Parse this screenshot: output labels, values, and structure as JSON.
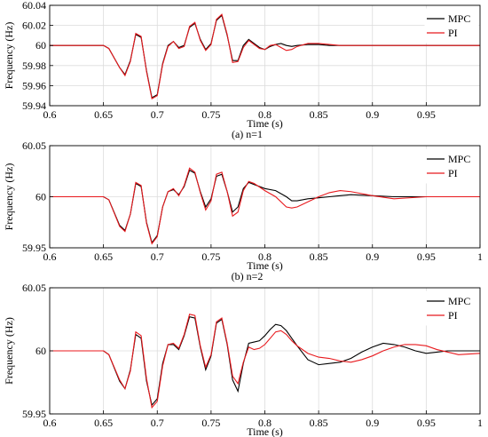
{
  "chart_data": [
    {
      "type": "line",
      "caption": "(a) n=1",
      "xlabel": "Time (s)",
      "ylabel": "Frequency (Hz)",
      "xlim": [
        0.6,
        1.0
      ],
      "ylim": [
        59.94,
        60.04
      ],
      "xticks": [
        0.6,
        0.65,
        0.7,
        0.75,
        0.8,
        0.85,
        0.9,
        0.95
      ],
      "xtick_labels": [
        "0.6",
        "0.65",
        "0.7",
        "0.75",
        "0.8",
        "0.85",
        "0.9",
        "0.95"
      ],
      "yticks": [
        59.94,
        59.96,
        59.98,
        60.0,
        60.02,
        60.04
      ],
      "ytick_labels": [
        "59.94",
        "59.96",
        "59.98",
        "60",
        "60.02",
        "60.04"
      ],
      "grid": true,
      "legend_position": "top-right",
      "series": [
        {
          "name": "MPC",
          "color": "#000000",
          "x": [
            0.6,
            0.65,
            0.655,
            0.665,
            0.67,
            0.675,
            0.68,
            0.685,
            0.69,
            0.695,
            0.7,
            0.705,
            0.71,
            0.715,
            0.72,
            0.725,
            0.73,
            0.735,
            0.74,
            0.745,
            0.75,
            0.755,
            0.76,
            0.765,
            0.77,
            0.775,
            0.78,
            0.785,
            0.79,
            0.795,
            0.8,
            0.805,
            0.81,
            0.815,
            0.82,
            0.825,
            0.83,
            0.84,
            0.85,
            0.86,
            0.87,
            0.88,
            0.9,
            0.95,
            1.0
          ],
          "y": [
            60.0,
            60.0,
            59.997,
            59.978,
            59.971,
            59.985,
            60.011,
            60.008,
            59.975,
            59.948,
            59.951,
            59.982,
            60.0,
            60.004,
            59.998,
            60.0,
            60.018,
            60.022,
            60.006,
            59.996,
            60.002,
            60.025,
            60.03,
            60.01,
            59.985,
            59.985,
            60.0,
            60.006,
            60.002,
            59.998,
            59.996,
            59.999,
            60.001,
            60.002,
            60.0,
            59.999,
            60.0,
            60.001,
            60.001,
            60.0,
            60.0,
            60.0,
            60.0,
            60.0,
            60.0
          ]
        },
        {
          "name": "PI",
          "color": "#e8191d",
          "x": [
            0.6,
            0.65,
            0.655,
            0.665,
            0.67,
            0.675,
            0.68,
            0.685,
            0.69,
            0.695,
            0.7,
            0.705,
            0.71,
            0.715,
            0.72,
            0.725,
            0.73,
            0.735,
            0.74,
            0.745,
            0.75,
            0.755,
            0.76,
            0.765,
            0.77,
            0.775,
            0.78,
            0.785,
            0.79,
            0.795,
            0.8,
            0.805,
            0.81,
            0.815,
            0.82,
            0.825,
            0.83,
            0.84,
            0.85,
            0.86,
            0.87,
            0.88,
            0.9,
            0.95,
            1.0
          ],
          "y": [
            60.0,
            60.0,
            59.997,
            59.978,
            59.97,
            59.984,
            60.012,
            60.009,
            59.974,
            59.947,
            59.95,
            59.981,
            59.999,
            60.004,
            59.997,
            59.999,
            60.019,
            60.023,
            60.005,
            59.995,
            60.001,
            60.026,
            60.031,
            60.011,
            59.983,
            59.984,
            59.998,
            60.005,
            60.001,
            59.997,
            59.996,
            60.0,
            60.001,
            59.998,
            59.995,
            59.996,
            59.999,
            60.002,
            60.002,
            60.001,
            60.0,
            60.0,
            60.0,
            60.0,
            60.0
          ]
        }
      ]
    },
    {
      "type": "line",
      "caption": "(b) n=2",
      "xlabel": "Time (s)",
      "ylabel": "Frequency (Hz)",
      "xlim": [
        0.6,
        1.0
      ],
      "ylim": [
        59.95,
        60.05
      ],
      "xticks": [
        0.6,
        0.65,
        0.7,
        0.75,
        0.8,
        0.85,
        0.9,
        0.95,
        1.0
      ],
      "xtick_labels": [
        "0.6",
        "0.65",
        "0.7",
        "0.75",
        "0.8",
        "0.85",
        "0.9",
        "0.95",
        "1"
      ],
      "yticks": [
        59.95,
        60.0,
        60.05
      ],
      "ytick_labels": [
        "59.95",
        "60",
        "60.05"
      ],
      "grid": true,
      "legend_position": "top-right",
      "series": [
        {
          "name": "MPC",
          "color": "#000000",
          "x": [
            0.6,
            0.65,
            0.655,
            0.665,
            0.67,
            0.675,
            0.68,
            0.685,
            0.69,
            0.695,
            0.7,
            0.705,
            0.71,
            0.715,
            0.72,
            0.725,
            0.73,
            0.735,
            0.74,
            0.745,
            0.75,
            0.755,
            0.76,
            0.765,
            0.77,
            0.775,
            0.78,
            0.785,
            0.79,
            0.8,
            0.81,
            0.82,
            0.825,
            0.83,
            0.84,
            0.85,
            0.86,
            0.87,
            0.88,
            0.9,
            0.92,
            0.95,
            1.0
          ],
          "y": [
            60.0,
            60.0,
            59.997,
            59.972,
            59.967,
            59.983,
            60.013,
            60.01,
            59.975,
            59.955,
            59.962,
            59.99,
            60.005,
            60.007,
            60.002,
            60.01,
            60.026,
            60.023,
            60.005,
            59.99,
            59.998,
            60.02,
            60.022,
            60.005,
            59.985,
            59.99,
            60.008,
            60.014,
            60.012,
            60.008,
            60.006,
            60.0,
            59.996,
            59.996,
            59.998,
            59.999,
            60.0,
            60.001,
            60.002,
            60.001,
            60.0,
            60.0,
            60.0
          ]
        },
        {
          "name": "PI",
          "color": "#e8191d",
          "x": [
            0.6,
            0.65,
            0.655,
            0.665,
            0.67,
            0.675,
            0.68,
            0.685,
            0.69,
            0.695,
            0.7,
            0.705,
            0.71,
            0.715,
            0.72,
            0.725,
            0.73,
            0.735,
            0.74,
            0.745,
            0.75,
            0.755,
            0.76,
            0.765,
            0.77,
            0.775,
            0.78,
            0.785,
            0.79,
            0.8,
            0.81,
            0.82,
            0.825,
            0.83,
            0.84,
            0.85,
            0.86,
            0.87,
            0.88,
            0.9,
            0.92,
            0.95,
            1.0
          ],
          "y": [
            60.0,
            60.0,
            59.997,
            59.971,
            59.966,
            59.983,
            60.014,
            60.011,
            59.974,
            59.954,
            59.961,
            59.99,
            60.005,
            60.008,
            60.001,
            60.011,
            60.028,
            60.024,
            60.004,
            59.987,
            59.996,
            60.022,
            60.024,
            60.005,
            59.981,
            59.985,
            60.006,
            60.015,
            60.013,
            60.006,
            60.0,
            59.99,
            59.989,
            59.99,
            59.995,
            60.0,
            60.004,
            60.006,
            60.005,
            60.001,
            59.998,
            60.0,
            60.0
          ]
        }
      ]
    },
    {
      "type": "line",
      "caption": "(c) n=3",
      "xlabel": "Time (s)",
      "ylabel": "Frequency (Hz)",
      "xlim": [
        0.6,
        1.0
      ],
      "ylim": [
        59.95,
        60.05
      ],
      "xticks": [
        0.6,
        0.65,
        0.7,
        0.75,
        0.8,
        0.85,
        0.9,
        0.95,
        1.0
      ],
      "xtick_labels": [
        "0.6",
        "0.65",
        "0.7",
        "0.75",
        "0.8",
        "0.85",
        "0.9",
        "0.95",
        "1"
      ],
      "yticks": [
        59.95,
        60.0,
        60.05
      ],
      "ytick_labels": [
        "59.95",
        "60",
        "60.05"
      ],
      "grid": true,
      "legend_position": "top-right",
      "series": [
        {
          "name": "MPC",
          "color": "#000000",
          "x": [
            0.6,
            0.65,
            0.655,
            0.665,
            0.67,
            0.675,
            0.68,
            0.685,
            0.69,
            0.695,
            0.7,
            0.705,
            0.71,
            0.715,
            0.72,
            0.725,
            0.73,
            0.735,
            0.74,
            0.745,
            0.75,
            0.755,
            0.76,
            0.765,
            0.77,
            0.775,
            0.78,
            0.785,
            0.79,
            0.795,
            0.8,
            0.805,
            0.81,
            0.815,
            0.82,
            0.825,
            0.83,
            0.84,
            0.85,
            0.86,
            0.87,
            0.88,
            0.89,
            0.9,
            0.91,
            0.92,
            0.93,
            0.94,
            0.95,
            0.96,
            0.97,
            0.98,
            1.0
          ],
          "y": [
            60.0,
            60.0,
            59.997,
            59.976,
            59.97,
            59.985,
            60.013,
            60.01,
            59.976,
            59.957,
            59.962,
            59.99,
            60.005,
            60.005,
            60.001,
            60.012,
            60.027,
            60.026,
            60.003,
            59.985,
            59.996,
            60.022,
            60.025,
            60.005,
            59.977,
            59.968,
            59.99,
            60.006,
            60.007,
            60.008,
            60.012,
            60.017,
            60.021,
            60.02,
            60.016,
            60.01,
            60.004,
            59.993,
            59.989,
            59.99,
            59.991,
            59.994,
            59.999,
            60.003,
            60.006,
            60.005,
            60.003,
            60.0,
            59.998,
            59.999,
            60.0,
            60.0,
            60.0
          ]
        },
        {
          "name": "PI",
          "color": "#e8191d",
          "x": [
            0.6,
            0.65,
            0.655,
            0.665,
            0.67,
            0.675,
            0.68,
            0.685,
            0.69,
            0.695,
            0.7,
            0.705,
            0.71,
            0.715,
            0.72,
            0.725,
            0.73,
            0.735,
            0.74,
            0.745,
            0.75,
            0.755,
            0.76,
            0.765,
            0.77,
            0.775,
            0.78,
            0.785,
            0.79,
            0.795,
            0.8,
            0.805,
            0.81,
            0.815,
            0.82,
            0.825,
            0.83,
            0.84,
            0.85,
            0.86,
            0.87,
            0.88,
            0.89,
            0.9,
            0.91,
            0.92,
            0.93,
            0.94,
            0.95,
            0.96,
            0.97,
            0.98,
            1.0
          ],
          "y": [
            60.0,
            60.0,
            59.997,
            59.977,
            59.97,
            59.984,
            60.015,
            60.012,
            59.978,
            59.955,
            59.96,
            59.988,
            60.005,
            60.006,
            60.002,
            60.013,
            60.029,
            60.028,
            60.004,
            59.987,
            59.997,
            60.023,
            60.026,
            60.006,
            59.98,
            59.974,
            59.991,
            60.003,
            60.001,
            60.002,
            60.005,
            60.01,
            60.015,
            60.016,
            60.013,
            60.008,
            60.004,
            59.998,
            59.995,
            59.994,
            59.992,
            59.991,
            59.993,
            59.996,
            60.0,
            60.003,
            60.005,
            60.005,
            60.004,
            60.001,
            59.999,
            59.997,
            59.998
          ]
        }
      ]
    }
  ]
}
